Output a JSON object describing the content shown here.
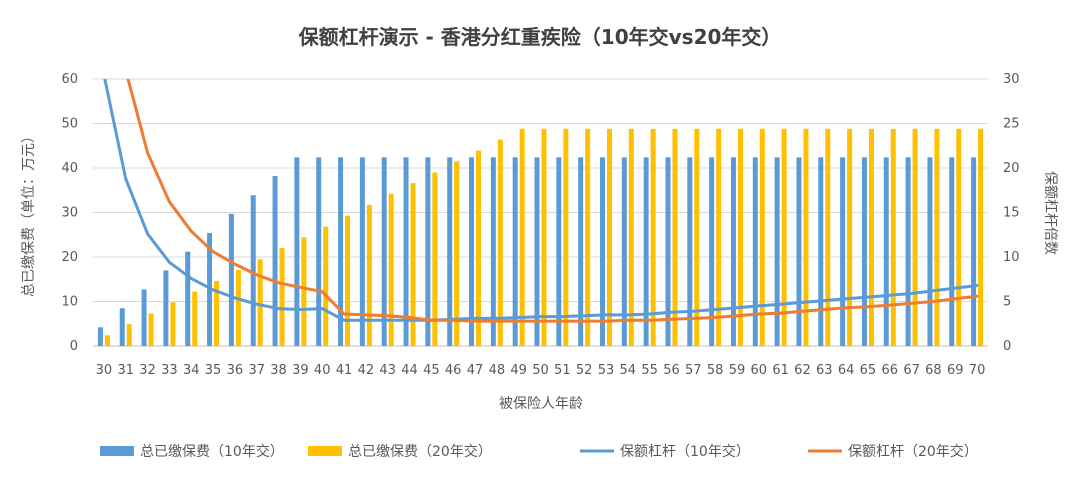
{
  "chart_data": {
    "type": "bar",
    "title": "保额杠杆演示 - 香港分红重疾险（10年交vs20年交）",
    "xlabel": "被保险人年龄",
    "ylabel": "总已缴保费（单位：万元）",
    "y2label": "保额杠杆倍数",
    "ylim": [
      0,
      60
    ],
    "y2lim": [
      0,
      30
    ],
    "yticks": [
      "0",
      "10",
      "20",
      "30",
      "40",
      "50",
      "60"
    ],
    "y2ticks": [
      "0",
      "5",
      "10",
      "15",
      "20",
      "25",
      "30"
    ],
    "grid": true,
    "legend_position": "bottom",
    "categories": [
      "30",
      "31",
      "32",
      "33",
      "34",
      "35",
      "36",
      "37",
      "38",
      "39",
      "40",
      "41",
      "42",
      "43",
      "44",
      "45",
      "46",
      "47",
      "48",
      "49",
      "50",
      "51",
      "52",
      "53",
      "54",
      "55",
      "56",
      "57",
      "58",
      "59",
      "60",
      "61",
      "62",
      "63",
      "64",
      "65",
      "66",
      "67",
      "68",
      "69",
      "70"
    ],
    "series": [
      {
        "name": "总已缴保费（10年交）",
        "kind": "bar",
        "axis": "left",
        "color": "#5B9BD5",
        "values": [
          4.2,
          8.5,
          12.7,
          17.0,
          21.2,
          25.4,
          29.7,
          33.9,
          38.2,
          42.4,
          42.4,
          42.4,
          42.4,
          42.4,
          42.4,
          42.4,
          42.4,
          42.4,
          42.4,
          42.4,
          42.4,
          42.4,
          42.4,
          42.4,
          42.4,
          42.4,
          42.4,
          42.4,
          42.4,
          42.4,
          42.4,
          42.4,
          42.4,
          42.4,
          42.4,
          42.4,
          42.4,
          42.4,
          42.4,
          42.4,
          42.4
        ]
      },
      {
        "name": "总已缴保费（20年交）",
        "kind": "bar",
        "axis": "left",
        "color": "#FFC000",
        "values": [
          2.4,
          4.9,
          7.3,
          9.8,
          12.2,
          14.6,
          17.1,
          19.5,
          22.0,
          24.4,
          26.8,
          29.3,
          31.7,
          34.2,
          36.6,
          39.0,
          41.5,
          43.9,
          46.4,
          48.8,
          48.8,
          48.8,
          48.8,
          48.8,
          48.8,
          48.8,
          48.8,
          48.8,
          48.8,
          48.8,
          48.8,
          48.8,
          48.8,
          48.8,
          48.8,
          48.8,
          48.8,
          48.8,
          48.8,
          48.8,
          48.8
        ]
      },
      {
        "name": "保额杠杆（10年交）",
        "kind": "line",
        "axis": "right",
        "color": "#5B9BD5",
        "values": [
          30.5,
          18.8,
          12.6,
          9.4,
          7.6,
          6.3,
          5.4,
          4.7,
          4.2,
          4.1,
          4.2,
          2.9,
          2.9,
          2.9,
          2.9,
          2.9,
          3.0,
          3.1,
          3.1,
          3.2,
          3.3,
          3.3,
          3.4,
          3.5,
          3.5,
          3.6,
          3.8,
          3.9,
          4.1,
          4.3,
          4.5,
          4.7,
          4.9,
          5.1,
          5.3,
          5.5,
          5.7,
          5.9,
          6.2,
          6.5,
          6.8
        ]
      },
      {
        "name": "保额杠杆（20年交）",
        "kind": "line",
        "axis": "right",
        "color": "#ED7D31",
        "values": [
          31.0,
          31.0,
          21.7,
          16.2,
          12.9,
          10.6,
          9.2,
          8.0,
          7.1,
          6.6,
          6.1,
          3.6,
          3.5,
          3.4,
          3.2,
          2.9,
          2.9,
          2.8,
          2.8,
          2.8,
          2.8,
          2.8,
          2.8,
          2.8,
          2.9,
          2.9,
          3.0,
          3.1,
          3.2,
          3.4,
          3.6,
          3.7,
          3.9,
          4.1,
          4.3,
          4.4,
          4.6,
          4.8,
          5.0,
          5.3,
          5.6
        ]
      }
    ]
  }
}
